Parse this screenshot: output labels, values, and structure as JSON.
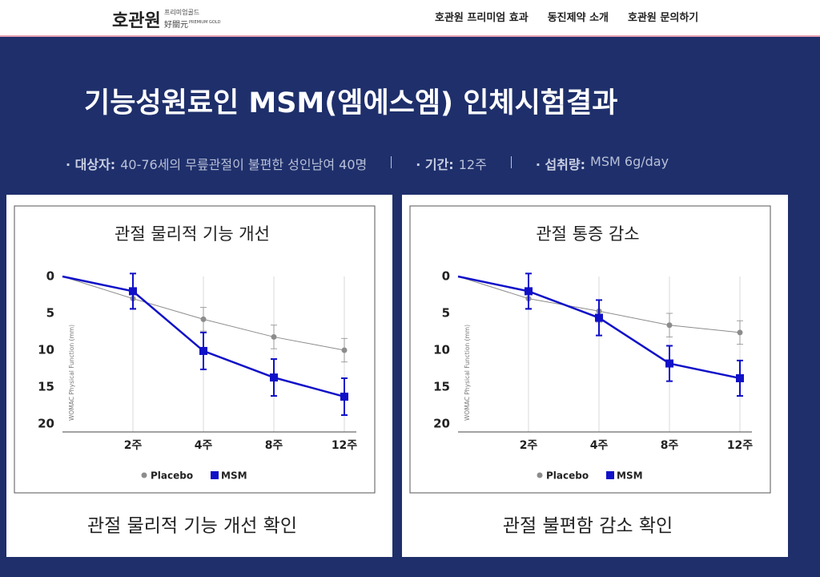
{
  "header": {
    "logo": "호관원",
    "logo_sub": "프리미엄골드",
    "logo_hanja": "好關元",
    "logo_en": "PREMIUM GOLD",
    "nav": [
      "호관원 프리미엄 효과",
      "동진제약 소개",
      "호관원 문의하기"
    ]
  },
  "hero": {
    "title": "기능성원료인 MSM(엠에스엠) 인체시험결과",
    "info": [
      {
        "label": "· 대상자:",
        "text": "40-76세의 무릎관절이 불편한 성인남여 40명"
      },
      {
        "label": "· 기간:",
        "text": "12주"
      },
      {
        "label": "· 섭취량:",
        "text": "MSM 6g/day"
      }
    ]
  },
  "chart_data": [
    {
      "type": "line",
      "title": "관절 물리적 기능 개선",
      "caption": "관절 물리적 기능 개선 확인",
      "y_label": "WOMAC Physical Function (mm)",
      "categories": [
        null,
        "2주",
        "4주",
        "8주",
        "12주"
      ],
      "ylim": [
        0,
        20
      ],
      "yticks": [
        0,
        5,
        10,
        15,
        20
      ],
      "y_inverted": true,
      "legend": "bottom",
      "series": [
        {
          "name": "Placebo",
          "color": "#8c8c8c",
          "marker": "circle",
          "values": [
            0,
            3,
            5.8,
            8.2,
            10
          ],
          "errors": [
            null,
            1.3,
            1.6,
            1.6,
            1.6
          ]
        },
        {
          "name": "MSM",
          "color": "#1010c8",
          "marker": "square",
          "values": [
            0,
            2,
            10.1,
            13.7,
            16.3
          ],
          "errors": [
            null,
            2.4,
            2.5,
            2.5,
            2.5
          ]
        }
      ]
    },
    {
      "type": "line",
      "title": "관절 통증 감소",
      "caption": "관절 불편함 감소 확인",
      "y_label": "WOMAC Physical Function (mm)",
      "categories": [
        null,
        "2주",
        "4주",
        "8주",
        "12주"
      ],
      "ylim": [
        0,
        20
      ],
      "yticks": [
        0,
        5,
        10,
        15,
        20
      ],
      "y_inverted": true,
      "legend": "bottom",
      "series": [
        {
          "name": "Placebo",
          "color": "#8c8c8c",
          "marker": "circle",
          "values": [
            0,
            3,
            4.7,
            6.6,
            7.6
          ],
          "errors": [
            null,
            1.3,
            1.5,
            1.6,
            1.6
          ]
        },
        {
          "name": "MSM",
          "color": "#1010c8",
          "marker": "square",
          "values": [
            0,
            2,
            5.6,
            11.8,
            13.8
          ],
          "errors": [
            null,
            2.4,
            2.4,
            2.4,
            2.4
          ]
        }
      ]
    }
  ]
}
